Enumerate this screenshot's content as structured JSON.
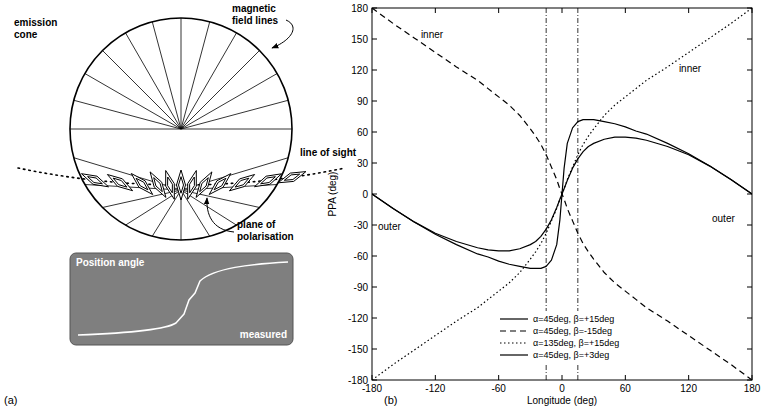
{
  "diagram": {
    "label": "(a)",
    "emission_cone": [
      "emission",
      "cone"
    ],
    "magnetic_field_lines": [
      "magnetic",
      "field lines"
    ],
    "line_of_sight": "line of sight",
    "plane_of_polarisation": [
      "plane of",
      "polarisation"
    ],
    "inset": {
      "title": "Position angle",
      "caption": "measured"
    }
  },
  "chart_data": {
    "type": "line",
    "label": "(b)",
    "x_label": "Longitude (deg)",
    "y_label": "PPA (deg)",
    "x": [
      -180,
      -160,
      -140,
      -120,
      -100,
      -80,
      -70,
      -60,
      -50,
      -40,
      -30,
      -25,
      -20,
      -15,
      -10,
      -5,
      -2,
      0,
      2,
      5,
      10,
      15,
      20,
      25,
      30,
      40,
      50,
      60,
      70,
      80,
      100,
      120,
      140,
      160,
      180
    ],
    "series": [
      {
        "name": "α=45deg, β=+15deg",
        "color": "#000000",
        "line_style": "solid",
        "values": [
          0,
          -14,
          -27,
          -38,
          -46,
          -52,
          -54,
          -55,
          -55,
          -53,
          -49,
          -46,
          -41,
          -34,
          -25,
          -13,
          -5,
          0,
          5,
          13,
          25,
          34,
          41,
          46,
          49,
          53,
          55,
          55,
          54,
          52,
          46,
          38,
          27,
          14,
          0
        ]
      },
      {
        "name": "α=45deg, β=-15deg",
        "color": "#000000",
        "line_style": "dashed",
        "values": [
          180,
          165,
          151,
          137,
          123,
          110,
          102,
          94,
          86,
          76,
          63,
          56,
          48,
          38,
          26,
          14,
          5,
          0,
          -5,
          -14,
          -26,
          -38,
          -48,
          -56,
          -63,
          -76,
          -86,
          -94,
          -102,
          -110,
          -123,
          -137,
          -151,
          -165,
          -180
        ]
      },
      {
        "name": "α=135deg, β=+15deg",
        "color": "#000000",
        "line_style": "dotted",
        "values": [
          -180,
          -165,
          -151,
          -137,
          -123,
          -110,
          -102,
          -94,
          -86,
          -76,
          -63,
          -56,
          -48,
          -38,
          -26,
          -14,
          -5,
          0,
          5,
          14,
          26,
          38,
          48,
          56,
          63,
          76,
          86,
          94,
          102,
          110,
          123,
          137,
          151,
          165,
          180
        ]
      },
      {
        "name": "α=45deg, β=+3deg",
        "color": "#000000",
        "line_style": "solid",
        "values": [
          0,
          -14,
          -27,
          -39,
          -49,
          -58,
          -61,
          -65,
          -68,
          -70,
          -72,
          -72,
          -72,
          -70,
          -64,
          -49,
          -25,
          0,
          25,
          49,
          64,
          70,
          72,
          72,
          72,
          70,
          68,
          65,
          61,
          58,
          49,
          39,
          27,
          14,
          0
        ]
      }
    ],
    "vlines": [
      -15,
      15
    ],
    "annotations": [
      "inner",
      "inner",
      "outer",
      "outer"
    ],
    "xlim": [
      -180,
      180
    ],
    "xticks": [
      -180,
      -120,
      -60,
      0,
      60,
      120,
      180
    ],
    "ylim": [
      -180,
      180
    ],
    "yticks": [
      -180,
      -150,
      -120,
      -90,
      -60,
      -30,
      0,
      30,
      60,
      90,
      120,
      150,
      180
    ],
    "legend": "bottom",
    "grid": false
  }
}
